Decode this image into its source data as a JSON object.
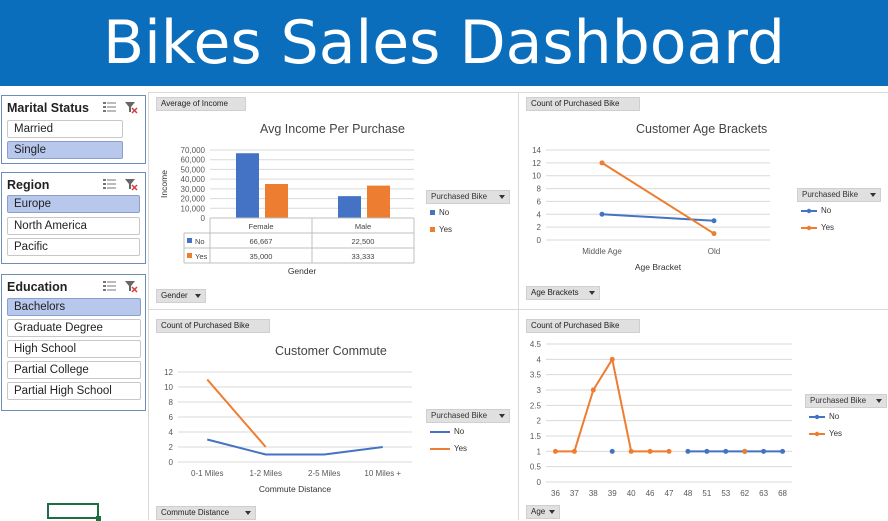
{
  "header": {
    "title": "Bikes Sales Dashboard",
    "color": "#0a6ebd"
  },
  "slicers": {
    "marital": {
      "title": "Marital Status",
      "items": [
        "Married",
        "Single"
      ],
      "selected": [
        "Single"
      ]
    },
    "region": {
      "title": "Region",
      "items": [
        "Europe",
        "North America",
        "Pacific"
      ],
      "selected": [
        "Europe"
      ]
    },
    "education": {
      "title": "Education",
      "items": [
        "Bachelors",
        "Graduate Degree",
        "High School",
        "Partial College",
        "Partial High School"
      ],
      "selected": [
        "Bachelors"
      ]
    }
  },
  "legend": {
    "title": "Purchased Bike",
    "no": "No",
    "yes": "Yes",
    "no_color": "#4472c4",
    "yes_color": "#ed7d31"
  },
  "income": {
    "value_button": "Average of Income",
    "axis_button": "Gender",
    "chart_data": {
      "type": "bar",
      "title": "Avg Income Per Purchase",
      "xlabel": "Gender",
      "ylabel": "Income",
      "categories": [
        "Female",
        "Male"
      ],
      "series": [
        {
          "name": "No",
          "values": [
            66667,
            22500
          ]
        },
        {
          "name": "Yes",
          "values": [
            35000,
            33333
          ]
        }
      ],
      "ylim": [
        0,
        70000
      ],
      "yticks": [
        "0",
        "10,000",
        "20,000",
        "30,000",
        "40,000",
        "50,000",
        "60,000",
        "70,000"
      ],
      "table": {
        "No": [
          "66,667",
          "22,500"
        ],
        "Yes": [
          "35,000",
          "33,333"
        ]
      }
    }
  },
  "age_brackets": {
    "value_button": "Count of Purchased Bike",
    "axis_button": "Age Brackets",
    "chart_data": {
      "type": "line",
      "title": "Customer Age Brackets",
      "xlabel": "Age Bracket",
      "categories": [
        "Middle Age",
        "Old"
      ],
      "series": [
        {
          "name": "No",
          "values": [
            4,
            3
          ]
        },
        {
          "name": "Yes",
          "values": [
            12,
            1
          ]
        }
      ],
      "ylim": [
        0,
        14
      ],
      "yticks": [
        "0",
        "2",
        "4",
        "6",
        "8",
        "10",
        "12",
        "14"
      ]
    }
  },
  "commute": {
    "value_button": "Count of Purchased Bike",
    "axis_button": "Commute Distance",
    "chart_data": {
      "type": "line",
      "title": "Customer Commute",
      "xlabel": "Commute Distance",
      "categories": [
        "0-1 Miles",
        "1-2 Miles",
        "2-5 Miles",
        "10 Miles +"
      ],
      "series": [
        {
          "name": "No",
          "values": [
            3,
            1,
            1,
            2
          ]
        },
        {
          "name": "Yes",
          "values": [
            11,
            2,
            null,
            null
          ]
        }
      ],
      "ylim": [
        0,
        12
      ],
      "yticks": [
        "0",
        "2",
        "4",
        "6",
        "8",
        "10",
        "12"
      ]
    }
  },
  "age": {
    "value_button": "Count of Purchased Bike",
    "axis_button": "Age",
    "chart_data": {
      "type": "line",
      "title": "",
      "categories": [
        "36",
        "37",
        "38",
        "39",
        "40",
        "46",
        "47",
        "48",
        "51",
        "53",
        "62",
        "63",
        "68"
      ],
      "series": [
        {
          "name": "No",
          "values": [
            null,
            null,
            null,
            1,
            null,
            null,
            null,
            1,
            1,
            1,
            1,
            1,
            1
          ]
        },
        {
          "name": "Yes",
          "values": [
            1,
            1,
            3,
            4,
            1,
            1,
            1,
            null,
            null,
            null,
            1,
            null,
            null
          ]
        }
      ],
      "ylim": [
        0,
        4.5
      ],
      "yticks": [
        "0",
        "0.5",
        "1",
        "1.5",
        "2",
        "2.5",
        "3",
        "3.5",
        "4",
        "4.5"
      ]
    }
  }
}
